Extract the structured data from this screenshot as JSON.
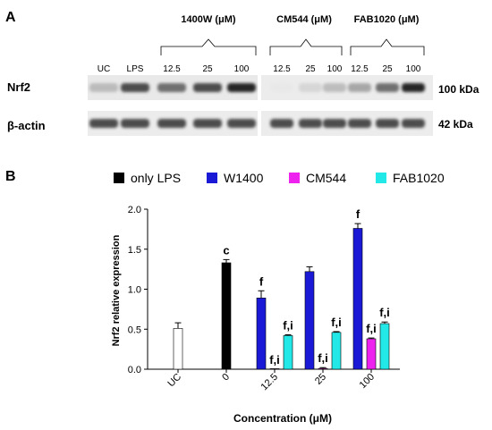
{
  "panel_a": {
    "label": "A",
    "group_headers": {
      "w1400": "1400W (μM)",
      "cm544": "CM544 (μM)",
      "fab1020": "FAB1020 (μM)"
    },
    "lanes_left": [
      "UC",
      "LPS",
      "12.5",
      "25",
      "100"
    ],
    "lanes_right": [
      "12.5",
      "25",
      "100",
      "12.5",
      "25",
      "100"
    ],
    "rows": [
      {
        "name": "Nrf2",
        "size": "100 kDa",
        "left_intensity": [
          0.45,
          0.85,
          0.75,
          0.85,
          0.95
        ],
        "right_intensity": [
          0.05,
          0.3,
          0.45,
          0.55,
          0.75,
          0.95
        ]
      },
      {
        "name": "β-actin",
        "size": "42 kDa",
        "left_intensity": [
          0.85,
          0.85,
          0.85,
          0.85,
          0.85
        ],
        "right_intensity": [
          0.85,
          0.85,
          0.85,
          0.85,
          0.85,
          0.85
        ]
      }
    ]
  },
  "panel_b": {
    "label": "B",
    "chart_data": {
      "type": "bar",
      "ylabel": "Nrf2 relative expression",
      "xlabel": "Concentration (μM)",
      "ylim": [
        0,
        2.0
      ],
      "yticks": [
        "0.0",
        "0.5",
        "1.0",
        "1.5",
        "2.0"
      ],
      "categories": [
        "UC",
        "0",
        "12.5",
        "25",
        "100"
      ],
      "legend": [
        {
          "name": "only LPS",
          "color": "#000000"
        },
        {
          "name": "W1400",
          "color": "#1a1ad6"
        },
        {
          "name": "CM544",
          "color": "#ee22ee"
        },
        {
          "name": "FAB1020",
          "color": "#22e8e8"
        }
      ],
      "bars": [
        {
          "category": "UC",
          "series": "UC",
          "value": 0.51,
          "error": 0.07,
          "fill": "#ffffff",
          "label": ""
        },
        {
          "category": "0",
          "series": "only LPS",
          "value": 1.33,
          "error": 0.04,
          "fill": "#000000",
          "label": "c"
        },
        {
          "category": "12.5",
          "series": "W1400",
          "value": 0.89,
          "error": 0.09,
          "fill": "#1a1ad6",
          "label": "f"
        },
        {
          "category": "12.5",
          "series": "CM544",
          "value": 0.0,
          "error": 0.0,
          "fill": "#ee22ee",
          "label": "f,i"
        },
        {
          "category": "12.5",
          "series": "FAB1020",
          "value": 0.42,
          "error": 0.01,
          "fill": "#22e8e8",
          "label": "f,i"
        },
        {
          "category": "25",
          "series": "W1400",
          "value": 1.22,
          "error": 0.06,
          "fill": "#1a1ad6",
          "label": ""
        },
        {
          "category": "25",
          "series": "CM544",
          "value": 0.01,
          "error": 0.01,
          "fill": "#ee22ee",
          "label": "f,i"
        },
        {
          "category": "25",
          "series": "FAB1020",
          "value": 0.46,
          "error": 0.01,
          "fill": "#22e8e8",
          "label": "f,i"
        },
        {
          "category": "100",
          "series": "W1400",
          "value": 1.76,
          "error": 0.06,
          "fill": "#1a1ad6",
          "label": "f"
        },
        {
          "category": "100",
          "series": "CM544",
          "value": 0.38,
          "error": 0.01,
          "fill": "#ee22ee",
          "label": "f,i"
        },
        {
          "category": "100",
          "series": "FAB1020",
          "value": 0.57,
          "error": 0.02,
          "fill": "#22e8e8",
          "label": "f,i"
        }
      ]
    }
  }
}
